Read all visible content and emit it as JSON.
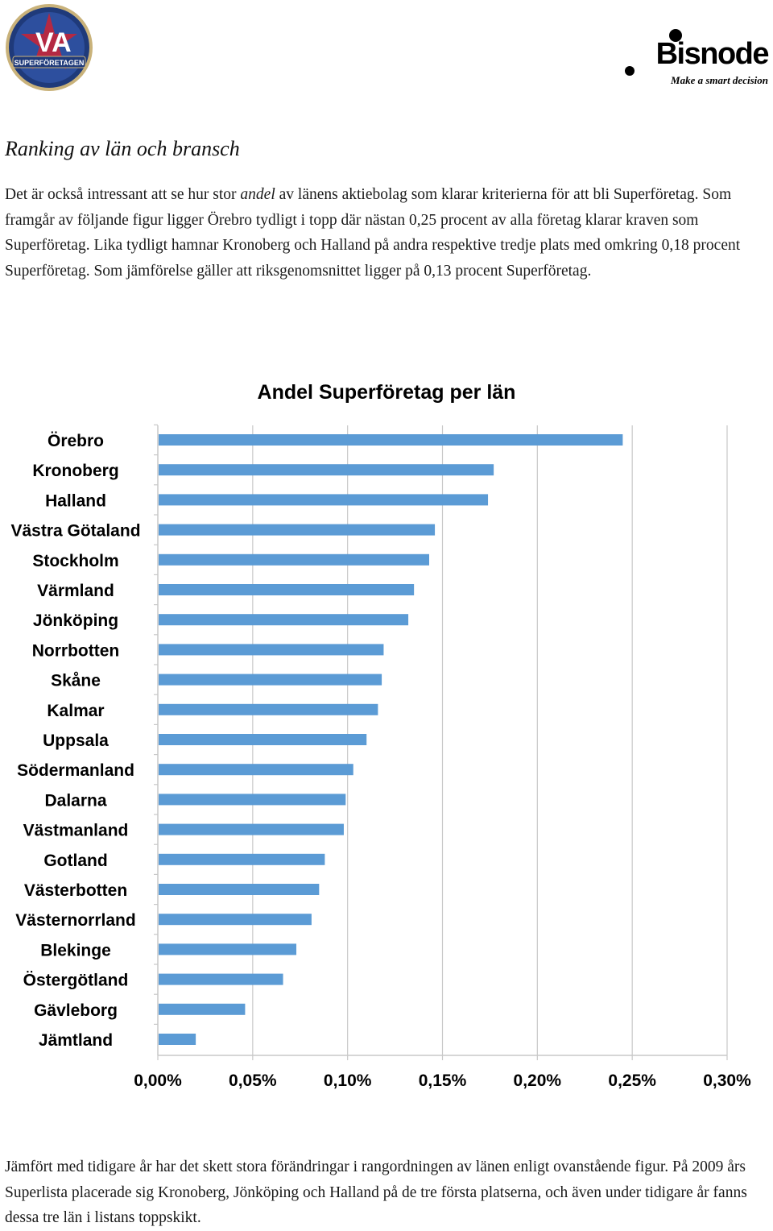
{
  "header": {
    "left_logo_icon": "va-superforetagen-badge",
    "left_logo_text": "SUPERFÖRETAGEN",
    "right_logo_name": "Bisnode",
    "right_logo_tagline": "Make a smart decision"
  },
  "article": {
    "heading": "Ranking av län och bransch",
    "intro_before_em": "Det är också intressant att se hur stor ",
    "intro_em": "andel",
    "intro_after_em": " av länens aktiebolag som klarar kriterierna för att bli Superföretag. Som framgår av följande figur ligger Örebro tydligt i topp där nästan 0,25 procent av alla företag klarar kraven som Superföretag. Lika tydligt hamnar Kronoberg och Halland på andra respektive tredje plats med omkring 0,18 procent Superföretag. Som jämförelse gäller att riksgenomsnittet ligger på 0,13 procent Superföretag.",
    "outro": "Jämfört med tidigare år har det skett stora förändringar i rangordningen av länen enligt ovanstående figur. På 2009 års Superlista placerade sig Kronoberg, Jönköping och Halland på de tre första platserna, och även under tidigare år fanns dessa tre län i listans toppskikt."
  },
  "colors": {
    "bar": "#5b9bd5",
    "grid": "#c8c8c8",
    "text": "#000000"
  },
  "chart_data": {
    "type": "bar",
    "orientation": "horizontal",
    "title": "Andel Superföretag per län",
    "categories": [
      "Örebro",
      "Kronoberg",
      "Halland",
      "Västra Götaland",
      "Stockholm",
      "Värmland",
      "Jönköping",
      "Norrbotten",
      "Skåne",
      "Kalmar",
      "Uppsala",
      "Södermanland",
      "Dalarna",
      "Västmanland",
      "Gotland",
      "Västerbotten",
      "Västernorrland",
      "Blekinge",
      "Östergötland",
      "Gävleborg",
      "Jämtland"
    ],
    "values": [
      0.245,
      0.177,
      0.174,
      0.146,
      0.143,
      0.135,
      0.132,
      0.119,
      0.118,
      0.116,
      0.11,
      0.103,
      0.099,
      0.098,
      0.088,
      0.085,
      0.081,
      0.073,
      0.066,
      0.046,
      0.02
    ],
    "value_unit": "%",
    "xlim": [
      0,
      0.3
    ],
    "ticks": [
      0,
      0.05,
      0.1,
      0.15,
      0.2,
      0.25,
      0.3
    ],
    "tick_labels": [
      "0,00%",
      "0,05%",
      "0,10%",
      "0,15%",
      "0,20%",
      "0,25%",
      "0,30%"
    ],
    "grid": true,
    "legend": "none"
  }
}
